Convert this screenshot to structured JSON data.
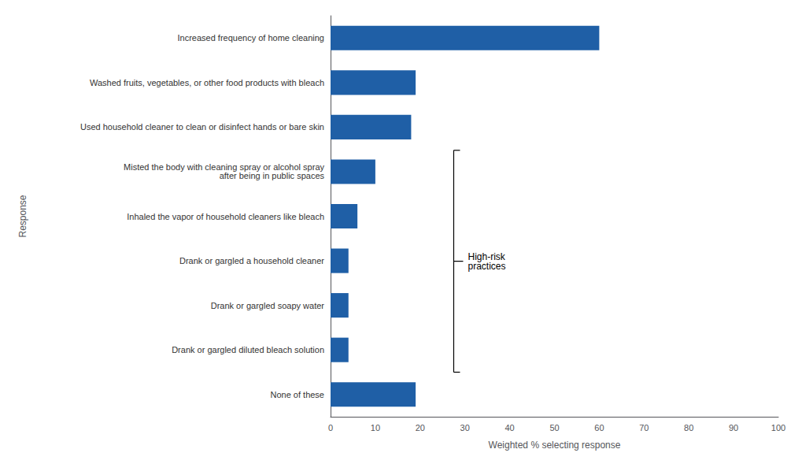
{
  "chart_data": {
    "type": "bar",
    "orientation": "horizontal",
    "categories": [
      "None of these",
      "Drank or gargled diluted bleach solution",
      "Drank or gargled soapy water",
      "Drank or gargled a household cleaner",
      "Inhaled the vapor of household cleaners like bleach",
      "Misted the body with cleaning spray or alcohol spray\nafter being in public spaces",
      "Used household cleaner to clean or disinfect hands or bare skin",
      "Washed fruits, vegetables, or other food products with bleach",
      "Increased frequency of home cleaning"
    ],
    "values": [
      19,
      4,
      4,
      4,
      6,
      10,
      18,
      19,
      60
    ],
    "color": "#1f5fa6",
    "xlabel": "Weighted % selecting response",
    "ylabel": "Response",
    "xlim": [
      0,
      100
    ],
    "xticks": [
      0,
      10,
      20,
      30,
      40,
      50,
      60,
      70,
      80,
      90,
      100
    ],
    "grid": false,
    "annotations": [
      {
        "text": "High-risk\npractices",
        "x": 27.5,
        "from": "Drank or gargled diluted bleach solution",
        "to": "Misted the body with cleaning spray or alcohol spray\nafter being in public spaces"
      }
    ]
  }
}
